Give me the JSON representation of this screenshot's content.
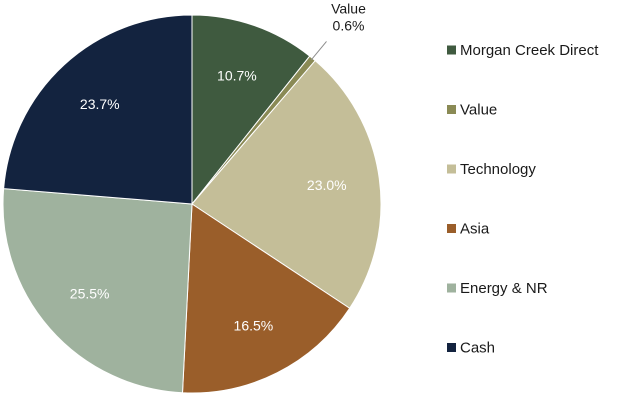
{
  "chart_data": {
    "type": "pie",
    "title": "",
    "slices": [
      {
        "label": "Morgan Creek Direct",
        "value": 10.7,
        "display": "10.7%",
        "color": "#3f5a3f"
      },
      {
        "label": "Value",
        "value": 0.6,
        "display": "0.6%",
        "color": "#8a8a55"
      },
      {
        "label": "Technology",
        "value": 23.0,
        "display": "23.0%",
        "color": "#c4be98"
      },
      {
        "label": "Asia",
        "value": 16.5,
        "display": "16.5%",
        "color": "#9a5e2a"
      },
      {
        "label": "Energy & NR",
        "value": 25.5,
        "display": "25.5%",
        "color": "#9fb29e"
      },
      {
        "label": "Cash",
        "value": 23.7,
        "display": "23.7%",
        "color": "#13233f"
      }
    ],
    "legend_position": "right"
  }
}
